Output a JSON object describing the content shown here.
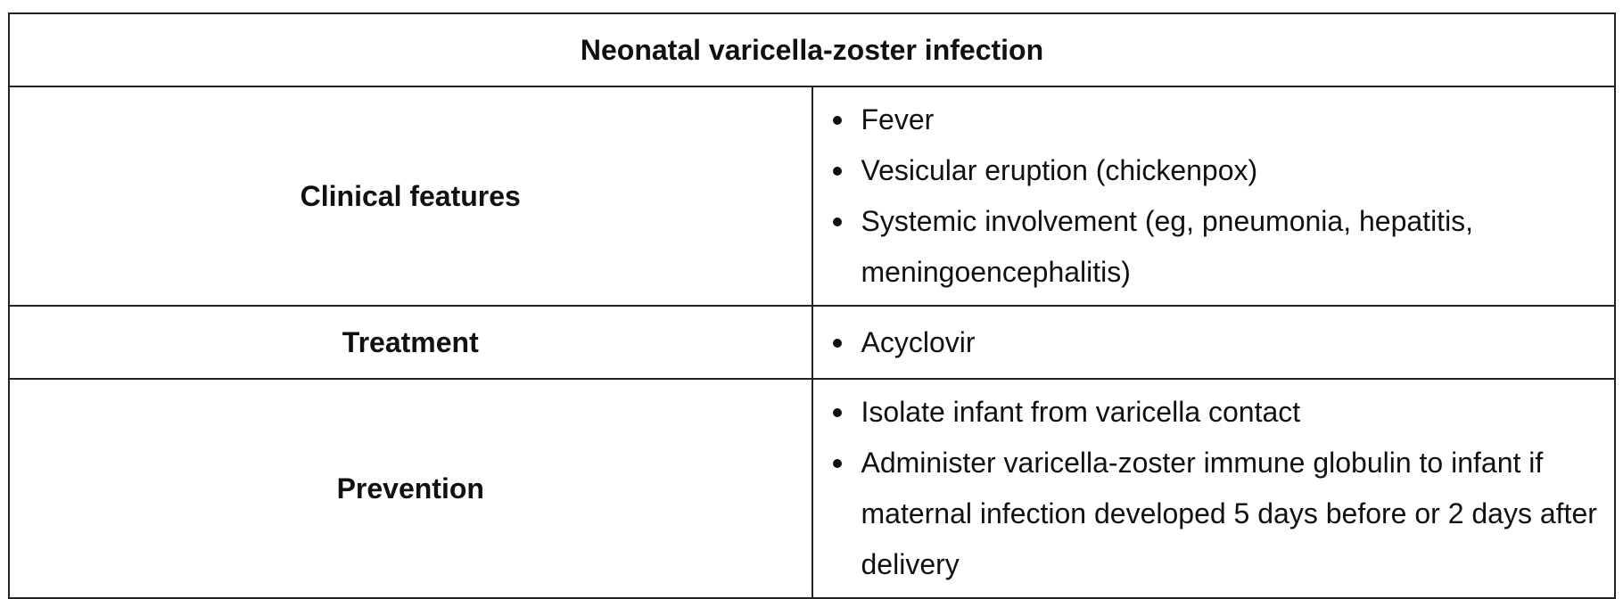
{
  "table": {
    "title": "Neonatal varicella-zoster infection",
    "rows": [
      {
        "label": "Clinical features",
        "items": [
          "Fever",
          "Vesicular eruption (chickenpox)",
          "Systemic involvement (eg, pneumonia, hepatitis, meningoencephalitis)"
        ]
      },
      {
        "label": "Treatment",
        "items": [
          "Acyclovir"
        ]
      },
      {
        "label": "Prevention",
        "items": [
          "Isolate infant from varicella contact",
          "Administer varicella-zoster immune globulin to infant if maternal infection developed 5 days before or 2 days after delivery"
        ]
      }
    ]
  },
  "colors": {
    "border": "#222222",
    "text": "#111111",
    "background": "#ffffff"
  }
}
